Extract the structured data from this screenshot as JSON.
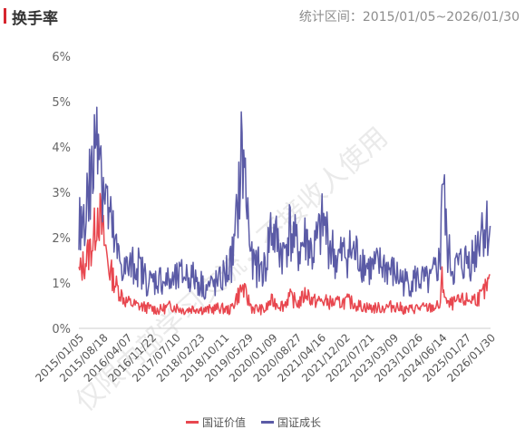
{
  "header": {
    "title": "换手率",
    "range_label": "统计区间：",
    "range_value": "2015/01/05~2026/01/30"
  },
  "watermark": "仅限内部学习交流，不接收人使用",
  "colors": {
    "accent": "#d7262f",
    "value_series": "#e8474f",
    "growth_series": "#5b5ba6"
  },
  "chart_data": {
    "type": "line",
    "title": "",
    "xlabel": "",
    "ylabel": "",
    "y_tick_labels": [
      "0%",
      "1%",
      "2%",
      "3%",
      "4%",
      "5%",
      "6%"
    ],
    "ylim": [
      0,
      6
    ],
    "y_unit": "%",
    "x_tick_labels": [
      "2015/01/05",
      "2015/08/18",
      "2016/04/07",
      "2016/11/22",
      "2017/07/10",
      "2018/02/23",
      "2018/10/11",
      "2019/05/29",
      "2020/01/09",
      "2020/08/27",
      "2021/04/16",
      "2021/12/02",
      "2022/07/21",
      "2023/03/09",
      "2023/10/26",
      "2024/06/14",
      "2025/01/27",
      "2026/01/30"
    ],
    "x_dates": [
      "2015/01/05",
      "2015/04/01",
      "2015/06/01",
      "2015/07/10",
      "2015/08/18",
      "2015/11/01",
      "2016/01/15",
      "2016/04/07",
      "2016/08/01",
      "2016/11/22",
      "2017/03/01",
      "2017/07/10",
      "2017/11/01",
      "2018/02/23",
      "2018/06/01",
      "2018/10/11",
      "2019/02/01",
      "2019/03/15",
      "2019/05/29",
      "2019/09/01",
      "2020/01/09",
      "2020/03/01",
      "2020/07/10",
      "2020/08/27",
      "2020/12/01",
      "2021/02/20",
      "2021/04/16",
      "2021/08/01",
      "2021/12/02",
      "2022/04/01",
      "2022/07/21",
      "2022/11/01",
      "2023/03/09",
      "2023/07/01",
      "2023/10/26",
      "2024/02/05",
      "2024/06/14",
      "2024/09/24",
      "2024/10/08",
      "2024/12/01",
      "2025/01/27",
      "2025/04/07",
      "2025/08/20",
      "2025/11/01",
      "2026/01/30"
    ],
    "series": [
      {
        "name": "国证价值",
        "color": "#e8474f",
        "values": [
          1.2,
          1.6,
          2.0,
          2.7,
          2.2,
          1.3,
          0.9,
          0.6,
          0.5,
          0.45,
          0.4,
          0.5,
          0.4,
          0.45,
          0.4,
          0.45,
          0.4,
          0.6,
          0.9,
          0.45,
          0.4,
          0.6,
          0.5,
          0.7,
          0.55,
          0.8,
          0.6,
          0.6,
          0.55,
          0.6,
          0.5,
          0.45,
          0.45,
          0.5,
          0.4,
          0.45,
          0.45,
          0.5,
          1.1,
          0.5,
          0.55,
          0.6,
          0.65,
          0.7,
          1.05
        ]
      },
      {
        "name": "国证成长",
        "color": "#5b5ba6",
        "values": [
          2.1,
          2.9,
          3.6,
          5.2,
          3.5,
          2.4,
          1.6,
          1.3,
          1.4,
          1.0,
          1.1,
          1.0,
          1.2,
          1.1,
          0.9,
          1.0,
          1.4,
          1.8,
          4.0,
          1.4,
          1.3,
          2.2,
          1.6,
          2.2,
          1.7,
          2.0,
          1.6,
          2.3,
          1.5,
          1.7,
          1.6,
          1.3,
          1.4,
          1.2,
          1.0,
          1.1,
          1.0,
          1.5,
          3.6,
          1.7,
          1.3,
          1.4,
          1.6,
          2.3,
          2.15
        ]
      }
    ],
    "legend_position": "bottom-center",
    "grid": false
  }
}
